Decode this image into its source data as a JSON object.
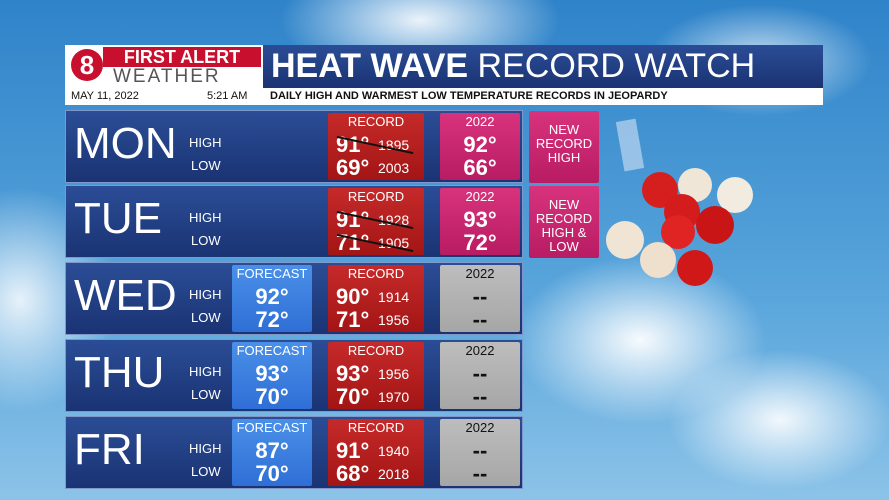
{
  "header": {
    "logo_line1": "FIRST ALERT",
    "logo_line2": "WEATHER",
    "title_bold": "HEAT WAVE",
    "title_rest": "RECORD WATCH",
    "date": "MAY 11, 2022",
    "time": "5:21 AM",
    "subtitle": "DAILY HIGH AND WARMEST LOW TEMPERATURE RECORDS IN JEOPARDY"
  },
  "rows": [
    {
      "day": "MON",
      "high_label": "HIGH",
      "low_label": "LOW",
      "record": {
        "label": "RECORD",
        "high": "91°",
        "high_year": "1895",
        "high_struck": true,
        "low": "69°",
        "low_year": "2003",
        "low_struck": false
      },
      "current": {
        "label": "2022",
        "high": "92°",
        "low": "66°",
        "highlight": true
      },
      "badge": "NEW RECORD HIGH"
    },
    {
      "day": "TUE",
      "high_label": "HIGH",
      "low_label": "LOW",
      "record": {
        "label": "RECORD",
        "high": "91°",
        "high_year": "1928",
        "high_struck": true,
        "low": "71°",
        "low_year": "1905",
        "low_struck": true
      },
      "current": {
        "label": "2022",
        "high": "93°",
        "low": "72°",
        "highlight": true
      },
      "badge": "NEW RECORD HIGH & LOW"
    },
    {
      "day": "WED",
      "high_label": "HIGH",
      "low_label": "LOW",
      "forecast": {
        "label": "FORECAST",
        "high": "92°",
        "low": "72°"
      },
      "record": {
        "label": "RECORD",
        "high": "90°",
        "high_year": "1914",
        "high_struck": false,
        "low": "71°",
        "low_year": "1956",
        "low_struck": false
      },
      "current": {
        "label": "2022",
        "high": "--",
        "low": "--",
        "highlight": false
      }
    },
    {
      "day": "THU",
      "high_label": "HIGH",
      "low_label": "LOW",
      "forecast": {
        "label": "FORECAST",
        "high": "93°",
        "low": "70°"
      },
      "record": {
        "label": "RECORD",
        "high": "93°",
        "high_year": "1956",
        "high_struck": false,
        "low": "70°",
        "low_year": "1970",
        "low_struck": false
      },
      "current": {
        "label": "2022",
        "high": "--",
        "low": "--",
        "highlight": false
      }
    },
    {
      "day": "FRI",
      "high_label": "HIGH",
      "low_label": "LOW",
      "forecast": {
        "label": "FORECAST",
        "high": "87°",
        "low": "70°"
      },
      "record": {
        "label": "RECORD",
        "high": "91°",
        "high_year": "1940",
        "high_struck": false,
        "low": "68°",
        "low_year": "2018",
        "low_struck": false
      },
      "current": {
        "label": "2022",
        "high": "--",
        "low": "--",
        "highlight": false
      }
    }
  ]
}
